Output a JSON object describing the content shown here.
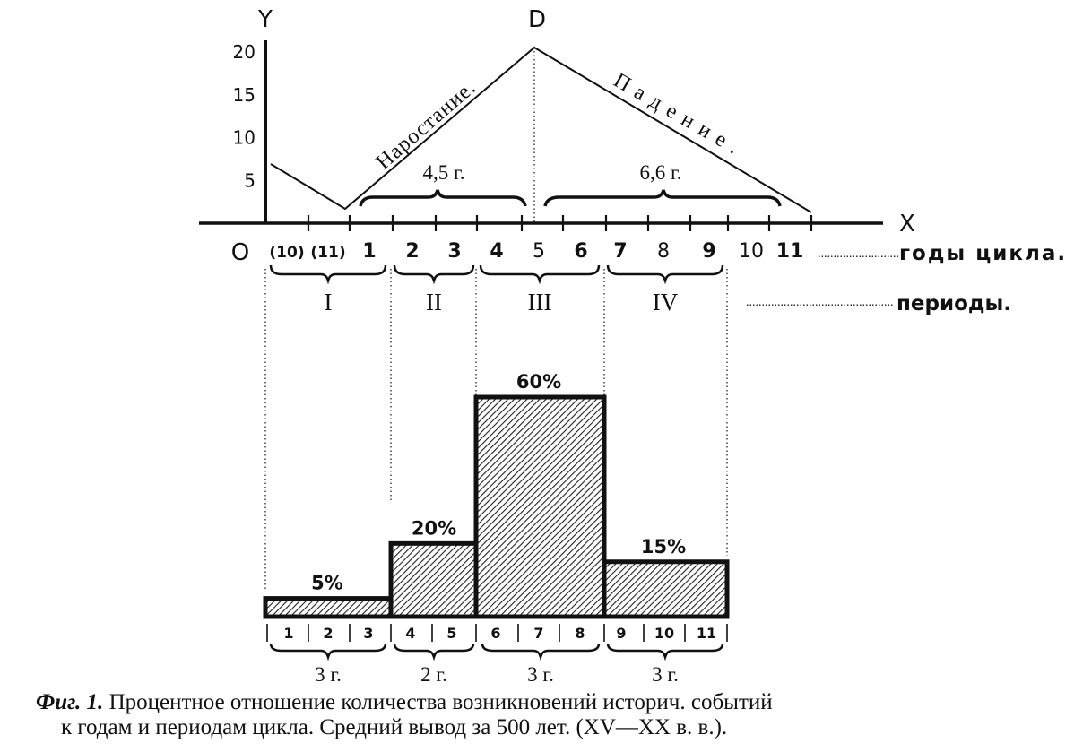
{
  "chart_data": [
    {
      "type": "line",
      "axis_x_label": "X",
      "axis_y_label": "Y",
      "origin_label": "O",
      "peak_label": "D",
      "y_ticks": [
        "20",
        "15",
        "10",
        "5"
      ],
      "ylim": [
        0,
        20
      ],
      "year_labels": [
        "(10)",
        "(11)",
        "1",
        "2",
        "3",
        "4",
        "5",
        "6",
        "7",
        "8",
        "9",
        "10",
        "11"
      ],
      "year_label_bold": [
        true,
        true,
        true,
        true,
        true,
        true,
        false,
        true,
        true,
        false,
        true,
        false,
        true
      ],
      "rise_label": "Наростание.",
      "fall_label": "Падение.",
      "rise_duration": "4,5 г.",
      "fall_duration": "6,6 г.",
      "years_row_label": "годы цикла.",
      "periods_row_label": "периоды.",
      "periods": [
        "I",
        "II",
        "III",
        "IV"
      ]
    },
    {
      "type": "bar",
      "categories": [
        "I",
        "II",
        "III",
        "IV"
      ],
      "values": [
        5,
        20,
        60,
        15
      ],
      "value_labels": [
        "5%",
        "20%",
        "60%",
        "15%"
      ],
      "ylim": [
        0,
        60
      ],
      "bar_year_labels": [
        [
          "1",
          "2",
          "3"
        ],
        [
          "4",
          "5"
        ],
        [
          "6",
          "7",
          "8"
        ],
        [
          "9",
          "10",
          "11"
        ]
      ],
      "bar_durations": [
        "3 г.",
        "2 г.",
        "3 г.",
        "3 г."
      ]
    }
  ],
  "caption": {
    "fig_label": "Фиг. 1.",
    "line1_text": "Процентное отношение количества возникновений историч. событий",
    "line2_text": "к годам и периодам цикла. Средний вывод за 500 лет. (XV—XX в. в.)."
  }
}
